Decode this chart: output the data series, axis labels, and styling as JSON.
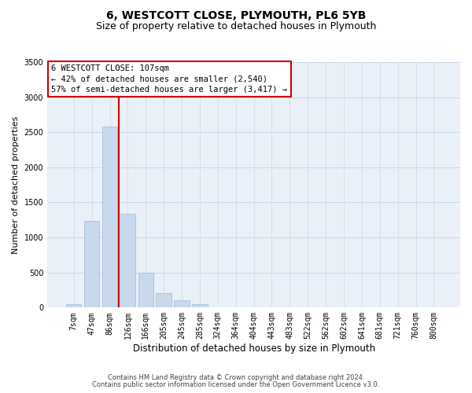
{
  "title": "6, WESTCOTT CLOSE, PLYMOUTH, PL6 5YB",
  "subtitle": "Size of property relative to detached houses in Plymouth",
  "xlabel": "Distribution of detached houses by size in Plymouth",
  "ylabel": "Number of detached properties",
  "bar_labels": [
    "7sqm",
    "47sqm",
    "86sqm",
    "126sqm",
    "166sqm",
    "205sqm",
    "245sqm",
    "285sqm",
    "324sqm",
    "364sqm",
    "404sqm",
    "443sqm",
    "483sqm",
    "522sqm",
    "562sqm",
    "602sqm",
    "641sqm",
    "681sqm",
    "721sqm",
    "760sqm",
    "800sqm"
  ],
  "bar_values": [
    50,
    1240,
    2580,
    1340,
    500,
    200,
    110,
    50,
    5,
    3,
    0,
    0,
    0,
    0,
    0,
    0,
    0,
    0,
    0,
    0,
    0
  ],
  "bar_color": "#c8d9ee",
  "bar_edge_color": "#a8c0da",
  "property_line_x": 2.52,
  "property_line_color": "#cc0000",
  "annotation_text": "6 WESTCOTT CLOSE: 107sqm\n← 42% of detached houses are smaller (2,540)\n57% of semi-detached houses are larger (3,417) →",
  "annotation_box_color": "#cc0000",
  "ylim": [
    0,
    3500
  ],
  "yticks": [
    0,
    500,
    1000,
    1500,
    2000,
    2500,
    3000,
    3500
  ],
  "footnote1": "Contains HM Land Registry data © Crown copyright and database right 2024.",
  "footnote2": "Contains public sector information licensed under the Open Government Licence v3.0.",
  "bg_color": "#ffffff",
  "plot_bg_color": "#eaf0f8",
  "grid_color": "#c8d8e8",
  "title_fontsize": 10,
  "subtitle_fontsize": 9,
  "xlabel_fontsize": 8.5,
  "ylabel_fontsize": 8,
  "tick_fontsize": 7,
  "annotation_fontsize": 7.5,
  "footnote_fontsize": 6
}
